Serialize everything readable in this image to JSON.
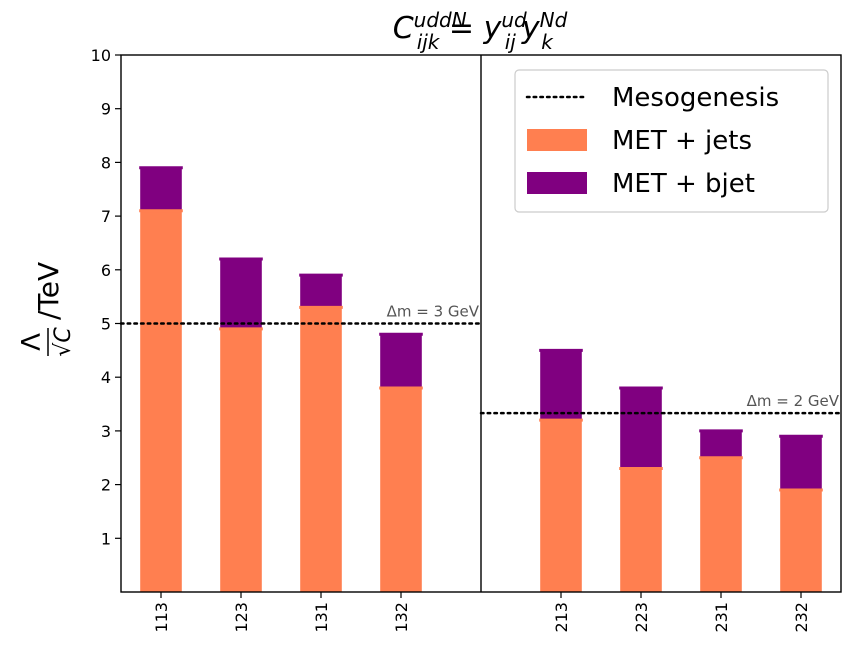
{
  "chart_data": {
    "type": "bar",
    "title": "C_ijk^uddN = y_ij^ud y_k^Nd",
    "title_parts": {
      "c": "C",
      "c_sup": "uddN",
      "c_sub": "ijk",
      "eq": " = ",
      "y1": "y",
      "y1_sup": "ud",
      "y1_sub": "ij",
      "y2": "y",
      "y2_sup": "Nd",
      "y2_sub": "k"
    },
    "ylabel": "Λ/√C /TeV",
    "ylabel_parts": {
      "num": "Λ",
      "den": "C",
      "unit": "/TeV"
    },
    "ylim": [
      0,
      10
    ],
    "yticks": [
      1,
      2,
      3,
      4,
      5,
      6,
      7,
      8,
      9,
      10
    ],
    "categories": [
      "113",
      "123",
      "131",
      "132",
      "213",
      "223",
      "231",
      "232"
    ],
    "groups": [
      {
        "categories": [
          "113",
          "123",
          "131",
          "132"
        ],
        "reference": 5.0,
        "reference_label": "Δm = 3 GeV"
      },
      {
        "categories": [
          "213",
          "223",
          "231",
          "232"
        ],
        "reference": 3.33,
        "reference_label": "Δm = 2 GeV"
      }
    ],
    "series": [
      {
        "name": "MET + jets",
        "color": "#ff7f50",
        "values": [
          7.1,
          4.9,
          5.3,
          3.8,
          3.2,
          2.3,
          2.5,
          1.9
        ]
      },
      {
        "name": "MET + bjet",
        "color": "#800080",
        "values": [
          7.9,
          6.2,
          5.9,
          4.8,
          4.5,
          3.8,
          3.0,
          2.9
        ]
      }
    ],
    "legend": {
      "position": "top-right",
      "entries": [
        {
          "label": "Mesogenesis",
          "style": "dotted",
          "color": "#000000"
        },
        {
          "label": "MET + jets",
          "style": "patch",
          "color": "#ff7f50"
        },
        {
          "label": "MET + bjet",
          "style": "patch",
          "color": "#800080"
        }
      ]
    },
    "grid": false
  }
}
